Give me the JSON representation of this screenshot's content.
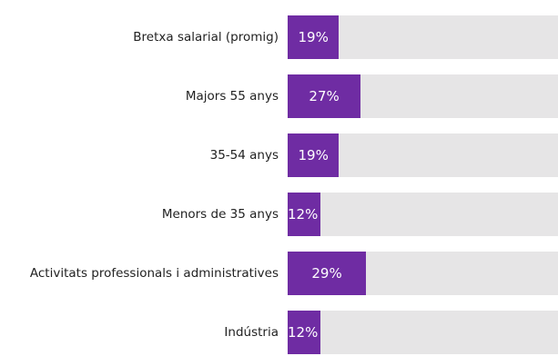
{
  "chart_data": {
    "type": "bar",
    "orientation": "horizontal",
    "categories": [
      "Bretxa salarial (promig)",
      "Majors 55 anys",
      "35-54 anys",
      "Menors de 35 anys",
      "Activitats professionals i administratives",
      "Indústria"
    ],
    "values": [
      19,
      27,
      19,
      12,
      29,
      12
    ],
    "data_labels": [
      "19%",
      "27%",
      "19%",
      "12%",
      "29%",
      "12%"
    ],
    "xlim": [
      0,
      100
    ],
    "grid": false,
    "legend": "none",
    "colors": {
      "bar": "#6f2ca3",
      "track": "#e6e5e6",
      "value_text": "#ffffff",
      "category_text": "#222222"
    }
  }
}
